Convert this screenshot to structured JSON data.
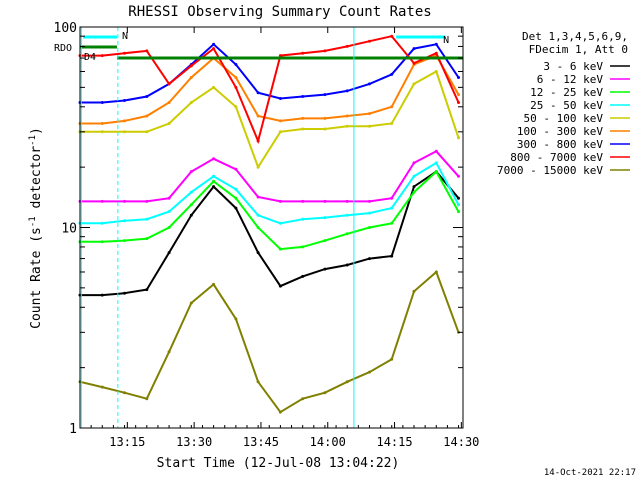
{
  "chart_data": {
    "type": "line",
    "title": "RHESSI Observing Summary Count Rates",
    "xlabel": "Start Time (12-Jul-08 13:04:22)",
    "ylabel_main": "Count Rate (s",
    "ylabel_sup": "-1",
    "ylabel_tail": " detector",
    "ylabel_sup2": "-1",
    "ylabel_close": ")",
    "yscale": "log",
    "ylim": [
      1,
      100
    ],
    "xlim_minutes": [
      0,
      86
    ],
    "x_ticks": [
      {
        "label": "13:15",
        "min": 10.63
      },
      {
        "label": "13:30",
        "min": 25.63
      },
      {
        "label": "13:45",
        "min": 40.63
      },
      {
        "label": "14:00",
        "min": 55.63
      },
      {
        "label": "14:15",
        "min": 70.63
      },
      {
        "label": "14:30",
        "min": 85.63
      }
    ],
    "y_ticks": [
      {
        "label": "1",
        "value": 1
      },
      {
        "label": "10",
        "value": 10
      },
      {
        "label": "100",
        "value": 100
      }
    ],
    "legend_header": [
      "Det 1,3,4,5,6,9,",
      "FDecim 1, Att 0"
    ],
    "series": [
      {
        "name": "3 - 6 keV",
        "color": "#000000",
        "x": [
          0,
          5,
          10,
          15,
          20,
          25,
          30,
          35,
          40,
          45,
          50,
          55,
          60,
          65,
          70,
          75,
          80,
          85
        ],
        "y": [
          4.6,
          4.6,
          4.7,
          4.9,
          7.5,
          11.5,
          16,
          12.5,
          7.5,
          5.1,
          5.7,
          6.2,
          6.5,
          7.0,
          7.2,
          16,
          19,
          14
        ]
      },
      {
        "name": "6 - 12 keV",
        "color": "#ff00ff",
        "x": [
          0,
          5,
          10,
          15,
          20,
          25,
          30,
          35,
          40,
          45,
          50,
          55,
          60,
          65,
          70,
          75,
          80,
          85
        ],
        "y": [
          13.5,
          13.5,
          13.5,
          13.5,
          14,
          19,
          22,
          19.5,
          14.2,
          13.5,
          13.5,
          13.5,
          13.5,
          13.5,
          14,
          21,
          24,
          18
        ]
      },
      {
        "name": "12 - 25 keV",
        "color": "#00ff00",
        "x": [
          0,
          5,
          10,
          15,
          20,
          25,
          30,
          35,
          40,
          45,
          50,
          55,
          60,
          65,
          70,
          75,
          80,
          85
        ],
        "y": [
          8.5,
          8.5,
          8.6,
          8.8,
          10,
          13,
          17,
          14,
          10,
          7.8,
          8,
          8.6,
          9.3,
          10,
          10.5,
          15,
          19,
          12
        ]
      },
      {
        "name": "25 - 50 keV",
        "color": "#00ffff",
        "x": [
          0,
          5,
          10,
          15,
          20,
          25,
          30,
          35,
          40,
          45,
          50,
          55,
          60,
          65,
          70,
          75,
          80,
          85
        ],
        "y": [
          10.5,
          10.5,
          10.8,
          11,
          12,
          15,
          18,
          15.5,
          11.5,
          10.5,
          11,
          11.2,
          11.5,
          11.8,
          12.5,
          18,
          21,
          13
        ]
      },
      {
        "name": "50 - 100 keV",
        "color": "#cccc00",
        "x": [
          0,
          5,
          10,
          15,
          20,
          25,
          30,
          35,
          40,
          45,
          50,
          55,
          60,
          65,
          70,
          75,
          80,
          85
        ],
        "y": [
          30,
          30,
          30,
          30,
          33,
          42,
          50,
          40,
          20,
          30,
          31,
          31,
          32,
          32,
          33,
          52,
          60,
          28
        ]
      },
      {
        "name": "100 - 300 keV",
        "color": "#ff8000",
        "x": [
          0,
          5,
          10,
          15,
          20,
          25,
          30,
          35,
          40,
          45,
          50,
          55,
          60,
          65,
          70,
          75,
          80,
          85
        ],
        "y": [
          33,
          33,
          34,
          36,
          42,
          56,
          70,
          56,
          36,
          34,
          35,
          35,
          36,
          37,
          40,
          65,
          72,
          46
        ]
      },
      {
        "name": "300 - 800 keV",
        "color": "#0000ff",
        "x": [
          0,
          5,
          10,
          15,
          20,
          25,
          30,
          35,
          40,
          45,
          50,
          55,
          60,
          65,
          70,
          75,
          80,
          85
        ],
        "y": [
          42,
          42,
          43,
          45,
          52,
          65,
          82,
          65,
          47,
          44,
          45,
          46,
          48,
          52,
          58,
          78,
          82,
          56
        ]
      },
      {
        "name": "800 - 7000 keV",
        "color": "#ff0000",
        "x": [
          0,
          5,
          10,
          15,
          20,
          25,
          30,
          35,
          40,
          45,
          50,
          55,
          60,
          65,
          70,
          75,
          80,
          85
        ],
        "y": [
          72,
          72,
          74,
          76,
          52,
          64,
          78,
          50,
          27,
          72,
          74,
          76,
          80,
          85,
          90,
          66,
          74,
          42
        ]
      },
      {
        "name": "7000 - 15000 keV",
        "color": "#808000",
        "x": [
          0,
          5,
          10,
          15,
          20,
          25,
          30,
          35,
          40,
          45,
          50,
          55,
          60,
          65,
          70,
          75,
          80,
          85
        ],
        "y": [
          1.7,
          1.6,
          1.5,
          1.4,
          2.4,
          4.2,
          5.2,
          3.5,
          1.7,
          1.2,
          1.4,
          1.5,
          1.7,
          1.9,
          2.2,
          4.8,
          6.0,
          3.0
        ]
      }
    ],
    "annotations": {
      "rdo_label": "RDO",
      "n_label": "N",
      "d4_label": "D4"
    },
    "footer_date": "14-Oct-2021 22:17"
  }
}
